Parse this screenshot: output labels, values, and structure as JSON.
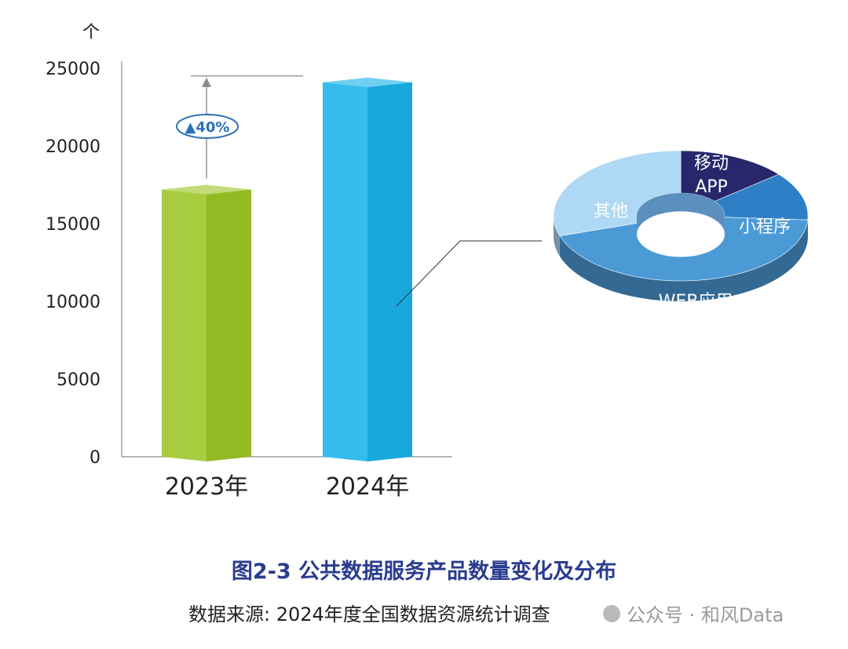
{
  "chart_data": [
    {
      "type": "bar",
      "ylabel": "个",
      "ylim": [
        0,
        25000
      ],
      "yticks": [
        0,
        5000,
        10000,
        15000,
        20000,
        25000
      ],
      "categories": [
        "2023年",
        "2024年"
      ],
      "values": [
        17200,
        24100
      ],
      "colors": [
        "#9cc525",
        "#1ab3ea"
      ],
      "annotation": "▲40%"
    },
    {
      "type": "pie",
      "style": "donut-3d",
      "labels": [
        "移动APP",
        "小程序",
        "WEB应用",
        "其他"
      ],
      "label_lines": [
        [
          "移动",
          "APP"
        ],
        [
          "小程序"
        ],
        [
          "WEB应用"
        ],
        [
          "其他"
        ]
      ],
      "values": [
        14,
        12,
        44,
        30
      ],
      "colors": [
        "#27286b",
        "#2e7fc5",
        "#4b9ad6",
        "#aed8f3"
      ]
    }
  ],
  "caption": {
    "title": "图2-3 公共数据服务产品数量变化及分布",
    "source": "数据来源: 2024年度全国数据资源统计调查"
  },
  "watermark": "公众号 · 和风Data"
}
